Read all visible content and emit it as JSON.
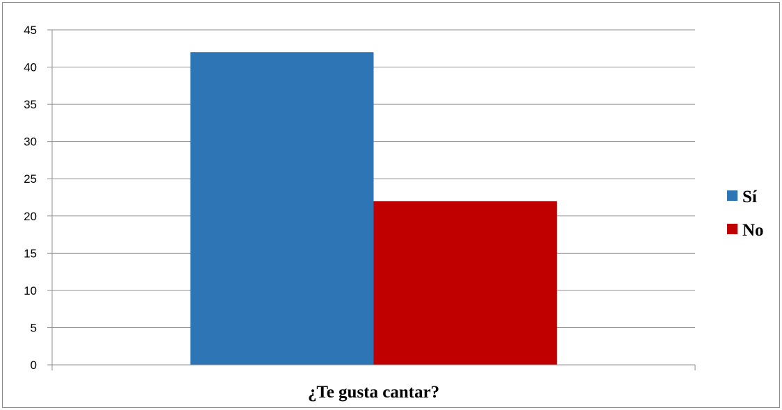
{
  "chart_data": {
    "type": "bar",
    "categories": [
      "¿Te gusta cantar?"
    ],
    "series": [
      {
        "name": "Sí",
        "values": [
          42
        ],
        "color": "#2E75B6"
      },
      {
        "name": "No",
        "values": [
          22
        ],
        "color": "#C00000"
      }
    ],
    "title": "",
    "xlabel": "",
    "ylabel": "",
    "ylim": [
      0,
      45
    ],
    "yticks": [
      0,
      5,
      10,
      15,
      20,
      25,
      30,
      35,
      40,
      45
    ],
    "grid": true,
    "legend_position": "right"
  }
}
